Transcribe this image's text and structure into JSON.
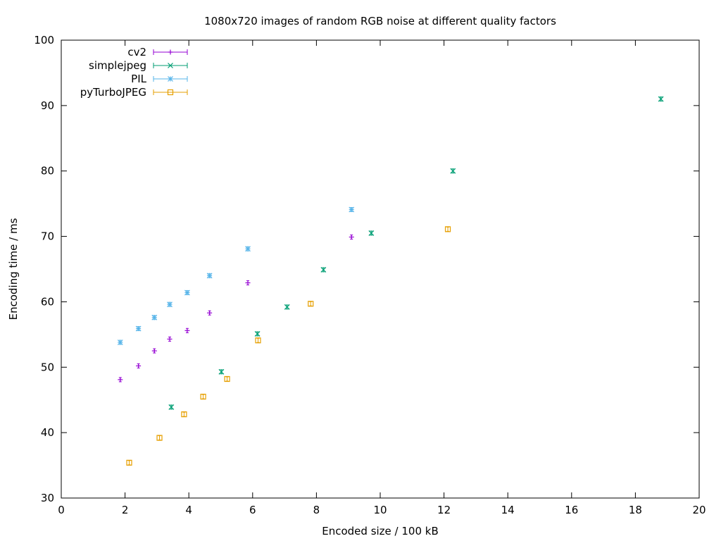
{
  "chart_data": {
    "type": "scatter",
    "title": "1080x720 images of random RGB noise at different quality factors",
    "xlabel": "Encoded size / 100 kB",
    "ylabel": "Encoding time / ms",
    "xlim": [
      0,
      20
    ],
    "ylim": [
      30,
      100
    ],
    "xticks": [
      0,
      2,
      4,
      6,
      8,
      10,
      12,
      14,
      16,
      18,
      20
    ],
    "yticks": [
      30,
      40,
      50,
      60,
      70,
      80,
      90,
      100
    ],
    "grid": false,
    "legend_position": "top-left",
    "series": [
      {
        "name": "cv2",
        "color": "#9400d3",
        "marker": "plus",
        "points": [
          [
            1.85,
            48.1
          ],
          [
            2.42,
            50.2
          ],
          [
            2.92,
            52.5
          ],
          [
            3.4,
            54.3
          ],
          [
            3.95,
            55.6
          ],
          [
            4.65,
            58.3
          ],
          [
            5.85,
            62.9
          ],
          [
            9.1,
            69.9
          ]
        ]
      },
      {
        "name": "simplejpeg",
        "color": "#009e73",
        "marker": "cross",
        "points": [
          [
            3.45,
            43.9
          ],
          [
            5.02,
            49.3
          ],
          [
            6.15,
            55.1
          ],
          [
            7.08,
            59.2
          ],
          [
            8.22,
            64.9
          ],
          [
            9.72,
            70.5
          ],
          [
            12.28,
            80.0
          ],
          [
            18.8,
            91.0
          ]
        ]
      },
      {
        "name": "PIL",
        "color": "#56b4e9",
        "marker": "star",
        "points": [
          [
            1.85,
            53.8
          ],
          [
            2.42,
            55.9
          ],
          [
            2.92,
            57.6
          ],
          [
            3.4,
            59.6
          ],
          [
            3.95,
            61.4
          ],
          [
            4.65,
            64.0
          ],
          [
            5.85,
            68.1
          ],
          [
            9.1,
            74.1
          ]
        ]
      },
      {
        "name": "pyTurboJPEG",
        "color": "#e69f00",
        "marker": "box",
        "points": [
          [
            2.13,
            35.4
          ],
          [
            3.08,
            39.2
          ],
          [
            3.85,
            42.8
          ],
          [
            4.45,
            45.5
          ],
          [
            5.2,
            48.2
          ],
          [
            6.17,
            54.1
          ],
          [
            7.82,
            59.7
          ],
          [
            12.12,
            71.1
          ]
        ]
      }
    ]
  }
}
